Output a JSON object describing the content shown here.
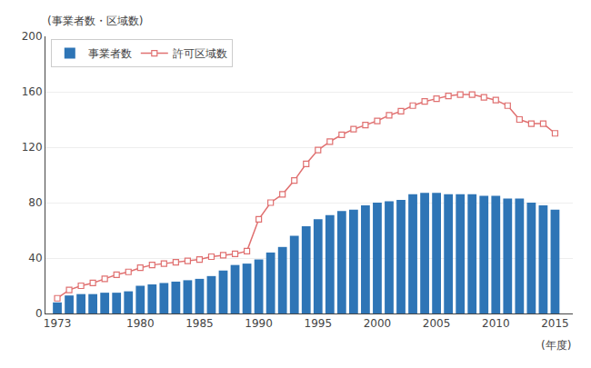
{
  "chart_data": {
    "type": "bar",
    "x": [
      1973,
      1974,
      1975,
      1976,
      1977,
      1978,
      1979,
      1980,
      1981,
      1982,
      1983,
      1984,
      1985,
      1986,
      1987,
      1988,
      1989,
      1990,
      1991,
      1992,
      1993,
      1994,
      1995,
      1996,
      1997,
      1998,
      1999,
      2000,
      2001,
      2002,
      2003,
      2004,
      2005,
      2006,
      2007,
      2008,
      2009,
      2010,
      2011,
      2012,
      2013,
      2014,
      2015
    ],
    "series": [
      {
        "name": "事業者数",
        "type": "bar",
        "color": "#2e75b6",
        "values": [
          8,
          13,
          14,
          14,
          15,
          15,
          16,
          20,
          21,
          22,
          23,
          24,
          25,
          27,
          31,
          35,
          36,
          39,
          44,
          48,
          56,
          63,
          68,
          71,
          74,
          75,
          78,
          80,
          81,
          82,
          86,
          87,
          87,
          86,
          86,
          86,
          85,
          85,
          83,
          83,
          80,
          78,
          75
        ]
      },
      {
        "name": "許可区域数",
        "type": "line",
        "color": "#e07070",
        "marker": "square",
        "values": [
          11,
          17,
          20,
          22,
          25,
          28,
          30,
          33,
          35,
          36,
          37,
          38,
          39,
          41,
          42,
          43,
          45,
          68,
          80,
          86,
          96,
          108,
          118,
          124,
          129,
          133,
          136,
          139,
          143,
          146,
          150,
          153,
          155,
          157,
          158,
          158,
          156,
          154,
          150,
          140,
          137,
          137,
          130
        ]
      }
    ],
    "xlabel": "(年度)",
    "ylabel": "(事業者数・区域数)",
    "xlim": [
      1972,
      2016.5
    ],
    "xticks": [
      1973,
      1980,
      1985,
      1990,
      1995,
      2000,
      2005,
      2010,
      2015
    ],
    "ylim": [
      0,
      200
    ],
    "yticks": [
      0,
      40,
      80,
      120,
      160,
      200
    ],
    "grid": true,
    "legend": "upper left"
  }
}
